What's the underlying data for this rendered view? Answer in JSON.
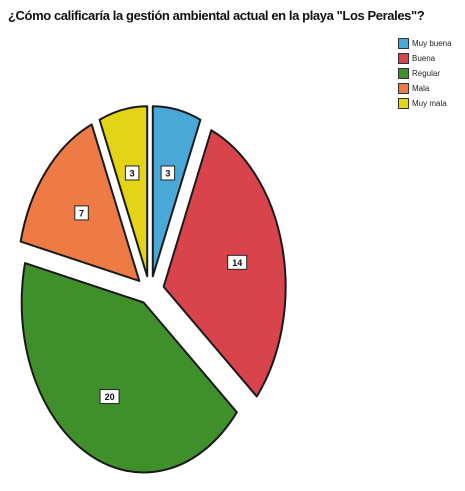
{
  "chart_data": {
    "type": "pie",
    "title": "¿Cómo calificaría la gestión ambiental actual en la playa \"Los Perales\"?",
    "categories": [
      "Muy buena",
      "Buena",
      "Regular",
      "Mala",
      "Muy mala"
    ],
    "values": [
      3,
      14,
      20,
      7,
      3
    ],
    "colors": [
      "#4aa8d8",
      "#d9434c",
      "#3f8f2a",
      "#ee7a45",
      "#e3d417"
    ],
    "exploded": true,
    "legend_position": "top-right"
  }
}
